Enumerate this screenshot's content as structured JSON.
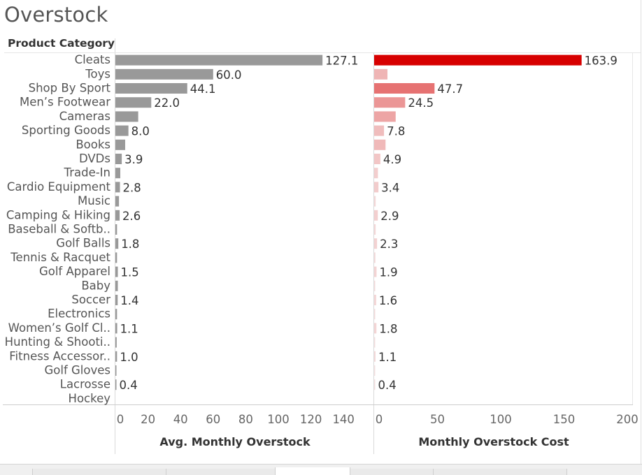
{
  "page": {
    "title": "Overstock"
  },
  "chart_data": {
    "type": "bar",
    "orientation": "horizontal",
    "row_header": "Product Category",
    "categories": [
      "Cleats",
      "Toys",
      "Shop By Sport",
      "Men’s Footwear",
      "Cameras",
      "Sporting Goods",
      "Books",
      "DVDs",
      "Trade-In",
      "Cardio Equipment",
      "Music",
      "Camping & Hiking",
      "Baseball & Softb..",
      "Golf Balls",
      "Tennis & Racquet",
      "Golf Apparel",
      "Baby",
      "Soccer",
      "Electronics",
      "Women’s Golf Cl..",
      "Hunting & Shooti..",
      "Fitness Accessor..",
      "Golf Gloves",
      "Lacrosse",
      "Hockey"
    ],
    "panels": [
      {
        "axis_title": "Avg. Monthly Overstock",
        "xlim": [
          0,
          155
        ],
        "ticks": [
          0,
          20,
          40,
          60,
          80,
          100,
          120,
          140
        ],
        "color": "#999999",
        "values": [
          127.1,
          60.0,
          44.1,
          22.0,
          14.0,
          8.0,
          6.0,
          3.9,
          3.0,
          2.8,
          2.2,
          2.6,
          1.0,
          1.8,
          1.0,
          1.5,
          1.5,
          1.4,
          1.0,
          1.1,
          0.8,
          1.0,
          0.6,
          0.4,
          0.0
        ],
        "labels": [
          "127.1",
          "60.0",
          "44.1",
          "22.0",
          "",
          "8.0",
          "",
          "3.9",
          "",
          "2.8",
          "",
          "2.6",
          "",
          "1.8",
          "",
          "1.5",
          "",
          "1.4",
          "",
          "1.1",
          "",
          "1.0",
          "",
          "0.4",
          ""
        ]
      },
      {
        "axis_title": "Monthly Overstock Cost",
        "xlim": [
          0,
          205
        ],
        "ticks": [
          0,
          50,
          100,
          150,
          200
        ],
        "color_low": "#f6e8e8",
        "color_high": "#d70000",
        "values": [
          163.9,
          10.5,
          47.7,
          24.5,
          17.0,
          7.8,
          9.0,
          4.9,
          3.0,
          3.4,
          1.2,
          2.9,
          1.2,
          2.3,
          1.0,
          1.9,
          0.6,
          1.6,
          0.5,
          1.8,
          0.3,
          1.1,
          0.2,
          0.4,
          0.0
        ],
        "labels": [
          "163.9",
          "",
          "47.7",
          "24.5",
          "",
          "7.8",
          "",
          "4.9",
          "",
          "3.4",
          "",
          "2.9",
          "",
          "2.3",
          "",
          "1.9",
          "",
          "1.6",
          "",
          "1.8",
          "",
          "1.1",
          "",
          "0.4",
          ""
        ]
      }
    ],
    "grid": false,
    "legend": "none"
  }
}
